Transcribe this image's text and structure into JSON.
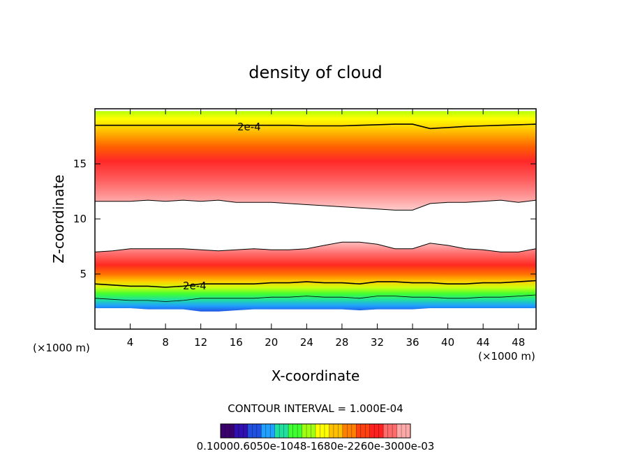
{
  "chart_data": {
    "type": "contour",
    "title": "density of cloud",
    "xlabel": "X-coordinate",
    "ylabel": "Z-coordinate",
    "x_unit": "(×1000 m)",
    "y_unit": "(×1000 m)",
    "xlim": [
      0,
      50
    ],
    "ylim": [
      0,
      20
    ],
    "x_ticks": [
      4,
      8,
      12,
      16,
      20,
      24,
      28,
      32,
      36,
      40,
      44,
      48
    ],
    "y_ticks": [
      5,
      10,
      15
    ],
    "contour_label": "2e-4",
    "contour_interval_text": "CONTOUR INTERVAL = 1.000E-04",
    "colorbar_labels_text": "0.10000.6050e-1048-1680e-2260e-3000e-03",
    "upper_layer": {
      "x": [
        0,
        2,
        4,
        6,
        8,
        10,
        12,
        14,
        16,
        18,
        20,
        22,
        24,
        26,
        28,
        30,
        32,
        34,
        36,
        38,
        40,
        42,
        44,
        46,
        48,
        50
      ],
      "top": [
        19.8,
        19.8,
        19.8,
        19.8,
        19.8,
        19.8,
        19.8,
        19.8,
        19.8,
        19.8,
        19.8,
        19.8,
        19.8,
        19.8,
        19.8,
        19.8,
        19.8,
        19.8,
        19.8,
        19.8,
        19.8,
        19.8,
        19.8,
        19.8,
        19.8,
        19.8
      ],
      "contour_2e4": [
        18.5,
        18.5,
        18.5,
        18.5,
        18.5,
        18.5,
        18.5,
        18.5,
        18.5,
        18.5,
        18.5,
        18.5,
        18.45,
        18.45,
        18.45,
        18.5,
        18.55,
        18.6,
        18.6,
        18.2,
        18.3,
        18.4,
        18.45,
        18.5,
        18.55,
        18.6
      ],
      "core": [
        14.5,
        14.5,
        14.5,
        14.4,
        14.3,
        14.3,
        14.3,
        14.3,
        14.3,
        14.3,
        14.3,
        14.2,
        14.2,
        14.2,
        14.2,
        14.2,
        14.2,
        14.1,
        14.0,
        14.1,
        14.2,
        14.3,
        14.4,
        14.5,
        14.5,
        14.5
      ],
      "bottom": [
        11.6,
        11.6,
        11.6,
        11.7,
        11.6,
        11.7,
        11.6,
        11.7,
        11.5,
        11.5,
        11.5,
        11.4,
        11.3,
        11.2,
        11.1,
        11.0,
        10.9,
        10.8,
        10.8,
        11.4,
        11.5,
        11.5,
        11.6,
        11.7,
        11.5,
        11.7
      ]
    },
    "lower_layer": {
      "x": [
        0,
        2,
        4,
        6,
        8,
        10,
        12,
        14,
        16,
        18,
        20,
        22,
        24,
        26,
        28,
        30,
        32,
        34,
        36,
        38,
        40,
        42,
        44,
        46,
        48,
        50
      ],
      "top": [
        7.0,
        7.1,
        7.3,
        7.3,
        7.3,
        7.3,
        7.2,
        7.1,
        7.2,
        7.3,
        7.2,
        7.2,
        7.3,
        7.6,
        7.9,
        7.9,
        7.7,
        7.3,
        7.3,
        7.8,
        7.6,
        7.3,
        7.2,
        7.0,
        7.0,
        7.3
      ],
      "core": [
        5.8,
        5.8,
        5.7,
        5.7,
        5.6,
        5.6,
        5.6,
        5.6,
        5.6,
        5.7,
        5.7,
        5.7,
        5.7,
        5.8,
        5.9,
        6.0,
        6.0,
        6.0,
        5.9,
        5.9,
        5.8,
        5.7,
        5.7,
        5.7,
        5.7,
        5.7
      ],
      "contour_2e4": [
        4.1,
        4.0,
        3.9,
        3.9,
        3.8,
        3.9,
        4.1,
        4.1,
        4.1,
        4.1,
        4.2,
        4.2,
        4.3,
        4.2,
        4.2,
        4.1,
        4.3,
        4.3,
        4.2,
        4.2,
        4.1,
        4.1,
        4.2,
        4.2,
        4.3,
        4.4
      ],
      "bottom": [
        1.9,
        1.9,
        1.9,
        1.8,
        1.8,
        1.8,
        1.6,
        1.6,
        1.7,
        1.8,
        1.8,
        1.8,
        1.8,
        1.8,
        1.8,
        1.7,
        1.8,
        1.8,
        1.8,
        1.9,
        1.9,
        1.9,
        1.9,
        1.9,
        1.9,
        1.9
      ]
    },
    "colors": {
      "frame": "#000000",
      "palette": [
        "#3a0070",
        "#3010b0",
        "#2050e0",
        "#20a0ff",
        "#20e0a0",
        "#40ff30",
        "#a0ff10",
        "#ffff00",
        "#ffc000",
        "#ff8000",
        "#ff4010",
        "#ff2020",
        "#ff6a6a",
        "#ffa8a8"
      ]
    }
  }
}
